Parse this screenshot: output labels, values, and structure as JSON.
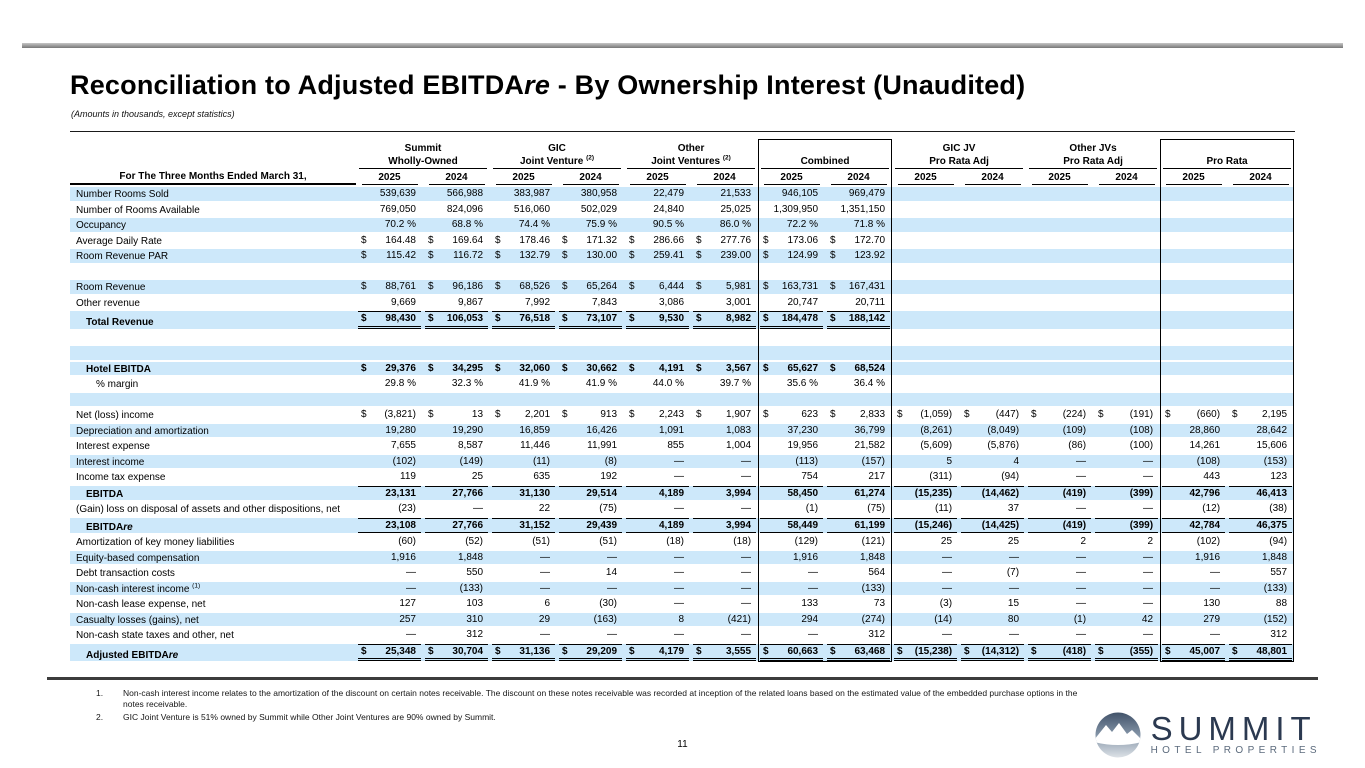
{
  "page": {
    "title_pre": "Reconciliation to Adjusted EBITDA",
    "title_italic": "re",
    "title_post": " - By Ownership Interest (Unaudited)",
    "subtitle": "(Amounts in thousands, except statistics)",
    "page_number": "11",
    "footnotes": [
      {
        "num": "1.",
        "text": "Non-cash interest income relates to the amortization of the discount on certain notes receivable. The discount on these notes receivable was recorded at inception of the related loans based on the estimated value of the embedded purchase options in the notes receivable."
      },
      {
        "num": "2.",
        "text": "GIC Joint Venture is 51% owned by Summit while Other Joint Ventures are 90% owned by Summit."
      }
    ],
    "logo": {
      "name": "SUMMIT",
      "tagline": "HOTEL PROPERTIES",
      "icon": "mountain-icon",
      "accent_color": "#2b3950"
    }
  },
  "table": {
    "stripe_color": "#cde8fa",
    "stub_header": "For The Three Months Ended March 31,",
    "years": [
      "2025",
      "2024"
    ],
    "groups": [
      {
        "line1": "Summit",
        "line2": "Wholly-Owned",
        "sup": "",
        "boxed": false
      },
      {
        "line1": "GIC",
        "line2": "Joint Venture",
        "sup": "(2)",
        "boxed": false
      },
      {
        "line1": "Other",
        "line2": "Joint Ventures",
        "sup": "(2)",
        "boxed": false
      },
      {
        "line1": "",
        "line2": "Combined",
        "sup": "",
        "boxed": true
      },
      {
        "line1": "GIC JV",
        "line2": "Pro Rata Adj",
        "sup": "",
        "boxed": false
      },
      {
        "line1": "Other JVs",
        "line2": "Pro Rata Adj",
        "sup": "",
        "boxed": false
      },
      {
        "line1": "",
        "line2": "Pro Rata",
        "sup": "",
        "boxed": true
      }
    ],
    "rows": [
      {
        "label": "Number Rooms Sold",
        "shaded": true,
        "values": [
          "539,639",
          "566,988",
          "383,987",
          "380,958",
          "22,479",
          "21,533",
          "946,105",
          "969,479",
          "",
          "",
          "",
          "",
          "",
          ""
        ]
      },
      {
        "label": "Number of Rooms Available",
        "shaded": false,
        "values": [
          "769,050",
          "824,096",
          "516,060",
          "502,029",
          "24,840",
          "25,025",
          "1,309,950",
          "1,351,150",
          "",
          "",
          "",
          "",
          "",
          ""
        ]
      },
      {
        "label": "Occupancy",
        "shaded": true,
        "values": [
          "70.2 %",
          "68.8 %",
          "74.4 %",
          "75.9 %",
          "90.5 %",
          "86.0 %",
          "72.2 %",
          "71.8 %",
          "",
          "",
          "",
          "",
          "",
          ""
        ]
      },
      {
        "label": "Average Daily Rate",
        "shaded": false,
        "money": true,
        "values": [
          "164.48",
          "169.64",
          "178.46",
          "171.32",
          "286.66",
          "277.76",
          "173.06",
          "172.70",
          "",
          "",
          "",
          "",
          "",
          ""
        ]
      },
      {
        "label": "Room Revenue PAR",
        "shaded": true,
        "money": true,
        "values": [
          "115.42",
          "116.72",
          "132.79",
          "130.00",
          "259.41",
          "239.00",
          "124.99",
          "123.92",
          "",
          "",
          "",
          "",
          "",
          ""
        ]
      },
      {
        "label": "",
        "shaded": false,
        "values": [
          "",
          "",
          "",
          "",
          "",
          "",
          "",
          "",
          "",
          "",
          "",
          "",
          "",
          ""
        ]
      },
      {
        "label": "Room Revenue",
        "shaded": true,
        "money": true,
        "values": [
          "88,761",
          "96,186",
          "68,526",
          "65,264",
          "6,444",
          "5,981",
          "163,731",
          "167,431",
          "",
          "",
          "",
          "",
          "",
          ""
        ]
      },
      {
        "label": "Other revenue",
        "shaded": false,
        "values": [
          "9,669",
          "9,867",
          "7,992",
          "7,843",
          "3,086",
          "3,001",
          "20,747",
          "20,711",
          "",
          "",
          "",
          "",
          "",
          ""
        ]
      },
      {
        "label": "Total Revenue",
        "shaded": true,
        "bold": true,
        "money": true,
        "indent": 1,
        "top_rule": true,
        "bottom": "double",
        "values": [
          "98,430",
          "106,053",
          "76,518",
          "73,107",
          "9,530",
          "8,982",
          "184,478",
          "188,142",
          "",
          "",
          "",
          "",
          "",
          ""
        ]
      },
      {
        "label": "",
        "shaded": false,
        "values": [
          "",
          "",
          "",
          "",
          "",
          "",
          "",
          "",
          "",
          "",
          "",
          "",
          "",
          ""
        ]
      },
      {
        "label": "",
        "shaded": true,
        "values": [
          "",
          "",
          "",
          "",
          "",
          "",
          "",
          "",
          "",
          "",
          "",
          "",
          "",
          ""
        ]
      },
      {
        "label": "Hotel EBITDA",
        "shaded": true,
        "bold": true,
        "money": true,
        "indent": 1,
        "values": [
          "29,376",
          "34,295",
          "32,060",
          "30,662",
          "4,191",
          "3,567",
          "65,627",
          "68,524",
          "",
          "",
          "",
          "",
          "",
          ""
        ]
      },
      {
        "label": "% margin",
        "shaded": false,
        "indent": 2,
        "values": [
          "29.8 %",
          "32.3 %",
          "41.9 %",
          "41.9 %",
          "44.0 %",
          "39.7 %",
          "35.6 %",
          "36.4 %",
          "",
          "",
          "",
          "",
          "",
          ""
        ]
      },
      {
        "label": "",
        "shaded": true,
        "values": [
          "",
          "",
          "",
          "",
          "",
          "",
          "",
          "",
          "",
          "",
          "",
          "",
          "",
          ""
        ]
      },
      {
        "label": "Net (loss) income",
        "shaded": false,
        "money": true,
        "values": [
          "(3,821)",
          "13",
          "2,201",
          "913",
          "2,243",
          "1,907",
          "623",
          "2,833",
          "(1,059)",
          "(447)",
          "(224)",
          "(191)",
          "(660)",
          "2,195"
        ]
      },
      {
        "label": "Depreciation and amortization",
        "shaded": true,
        "values": [
          "19,280",
          "19,290",
          "16,859",
          "16,426",
          "1,091",
          "1,083",
          "37,230",
          "36,799",
          "(8,261)",
          "(8,049)",
          "(109)",
          "(108)",
          "28,860",
          "28,642"
        ]
      },
      {
        "label": "Interest expense",
        "shaded": false,
        "values": [
          "7,655",
          "8,587",
          "11,446",
          "11,991",
          "855",
          "1,004",
          "19,956",
          "21,582",
          "(5,609)",
          "(5,876)",
          "(86)",
          "(100)",
          "14,261",
          "15,606"
        ]
      },
      {
        "label": "Interest income",
        "shaded": true,
        "values": [
          "(102)",
          "(149)",
          "(11)",
          "(8)",
          "—",
          "—",
          "(113)",
          "(157)",
          "5",
          "4",
          "—",
          "—",
          "(108)",
          "(153)"
        ]
      },
      {
        "label": "Income tax expense",
        "shaded": false,
        "values": [
          "119",
          "25",
          "635",
          "192",
          "—",
          "—",
          "754",
          "217",
          "(311)",
          "(94)",
          "—",
          "—",
          "443",
          "123"
        ]
      },
      {
        "label": "EBITDA",
        "shaded": true,
        "bold": true,
        "indent": 1,
        "top_rule": true,
        "values": [
          "23,131",
          "27,766",
          "31,130",
          "29,514",
          "4,189",
          "3,994",
          "58,450",
          "61,274",
          "(15,235)",
          "(14,462)",
          "(419)",
          "(399)",
          "42,796",
          "46,413"
        ]
      },
      {
        "label": "(Gain) loss on disposal of assets and other dispositions, net",
        "shaded": false,
        "values": [
          "(23)",
          "—",
          "22",
          "(75)",
          "—",
          "—",
          "(1)",
          "(75)",
          "(11)",
          "37",
          "—",
          "—",
          "(12)",
          "(38)"
        ]
      },
      {
        "label": "EBITDA",
        "italic": "re",
        "shaded": true,
        "bold": true,
        "indent": 1,
        "top_rule": true,
        "bottom": "single",
        "values": [
          "23,108",
          "27,766",
          "31,152",
          "29,439",
          "4,189",
          "3,994",
          "58,449",
          "61,199",
          "(15,246)",
          "(14,425)",
          "(419)",
          "(399)",
          "42,784",
          "46,375"
        ]
      },
      {
        "label": "Amortization of key money liabilities",
        "shaded": false,
        "values": [
          "(60)",
          "(52)",
          "(51)",
          "(51)",
          "(18)",
          "(18)",
          "(129)",
          "(121)",
          "25",
          "25",
          "2",
          "2",
          "(102)",
          "(94)"
        ]
      },
      {
        "label": "Equity-based compensation",
        "shaded": true,
        "values": [
          "1,916",
          "1,848",
          "—",
          "—",
          "—",
          "—",
          "1,916",
          "1,848",
          "—",
          "—",
          "—",
          "—",
          "1,916",
          "1,848"
        ]
      },
      {
        "label": "Debt transaction costs",
        "shaded": false,
        "values": [
          "—",
          "550",
          "—",
          "14",
          "—",
          "—",
          "—",
          "564",
          "—",
          "(7)",
          "—",
          "—",
          "—",
          "557"
        ]
      },
      {
        "label": "Non-cash interest income",
        "sup": "(1)",
        "shaded": true,
        "values": [
          "—",
          "(133)",
          "—",
          "—",
          "—",
          "—",
          "—",
          "(133)",
          "—",
          "—",
          "—",
          "—",
          "—",
          "(133)"
        ]
      },
      {
        "label": "Non-cash lease expense, net",
        "shaded": false,
        "values": [
          "127",
          "103",
          "6",
          "(30)",
          "—",
          "—",
          "133",
          "73",
          "(3)",
          "15",
          "—",
          "—",
          "130",
          "88"
        ]
      },
      {
        "label": "Casualty losses (gains), net",
        "shaded": true,
        "values": [
          "257",
          "310",
          "29",
          "(163)",
          "8",
          "(421)",
          "294",
          "(274)",
          "(14)",
          "80",
          "(1)",
          "42",
          "279",
          "(152)"
        ]
      },
      {
        "label": "Non-cash state taxes and other, net",
        "shaded": false,
        "values": [
          "—",
          "312",
          "—",
          "—",
          "—",
          "—",
          "—",
          "312",
          "—",
          "—",
          "—",
          "—",
          "—",
          "312"
        ]
      },
      {
        "label": "Adjusted EBITDA",
        "italic": "re",
        "shaded": true,
        "bold": true,
        "money": true,
        "indent": 1,
        "top_rule": true,
        "bottom": "double",
        "values": [
          "25,348",
          "30,704",
          "31,136",
          "29,209",
          "4,179",
          "3,555",
          "60,663",
          "63,468",
          "(15,238)",
          "(14,312)",
          "(418)",
          "(355)",
          "45,007",
          "48,801"
        ]
      }
    ]
  }
}
